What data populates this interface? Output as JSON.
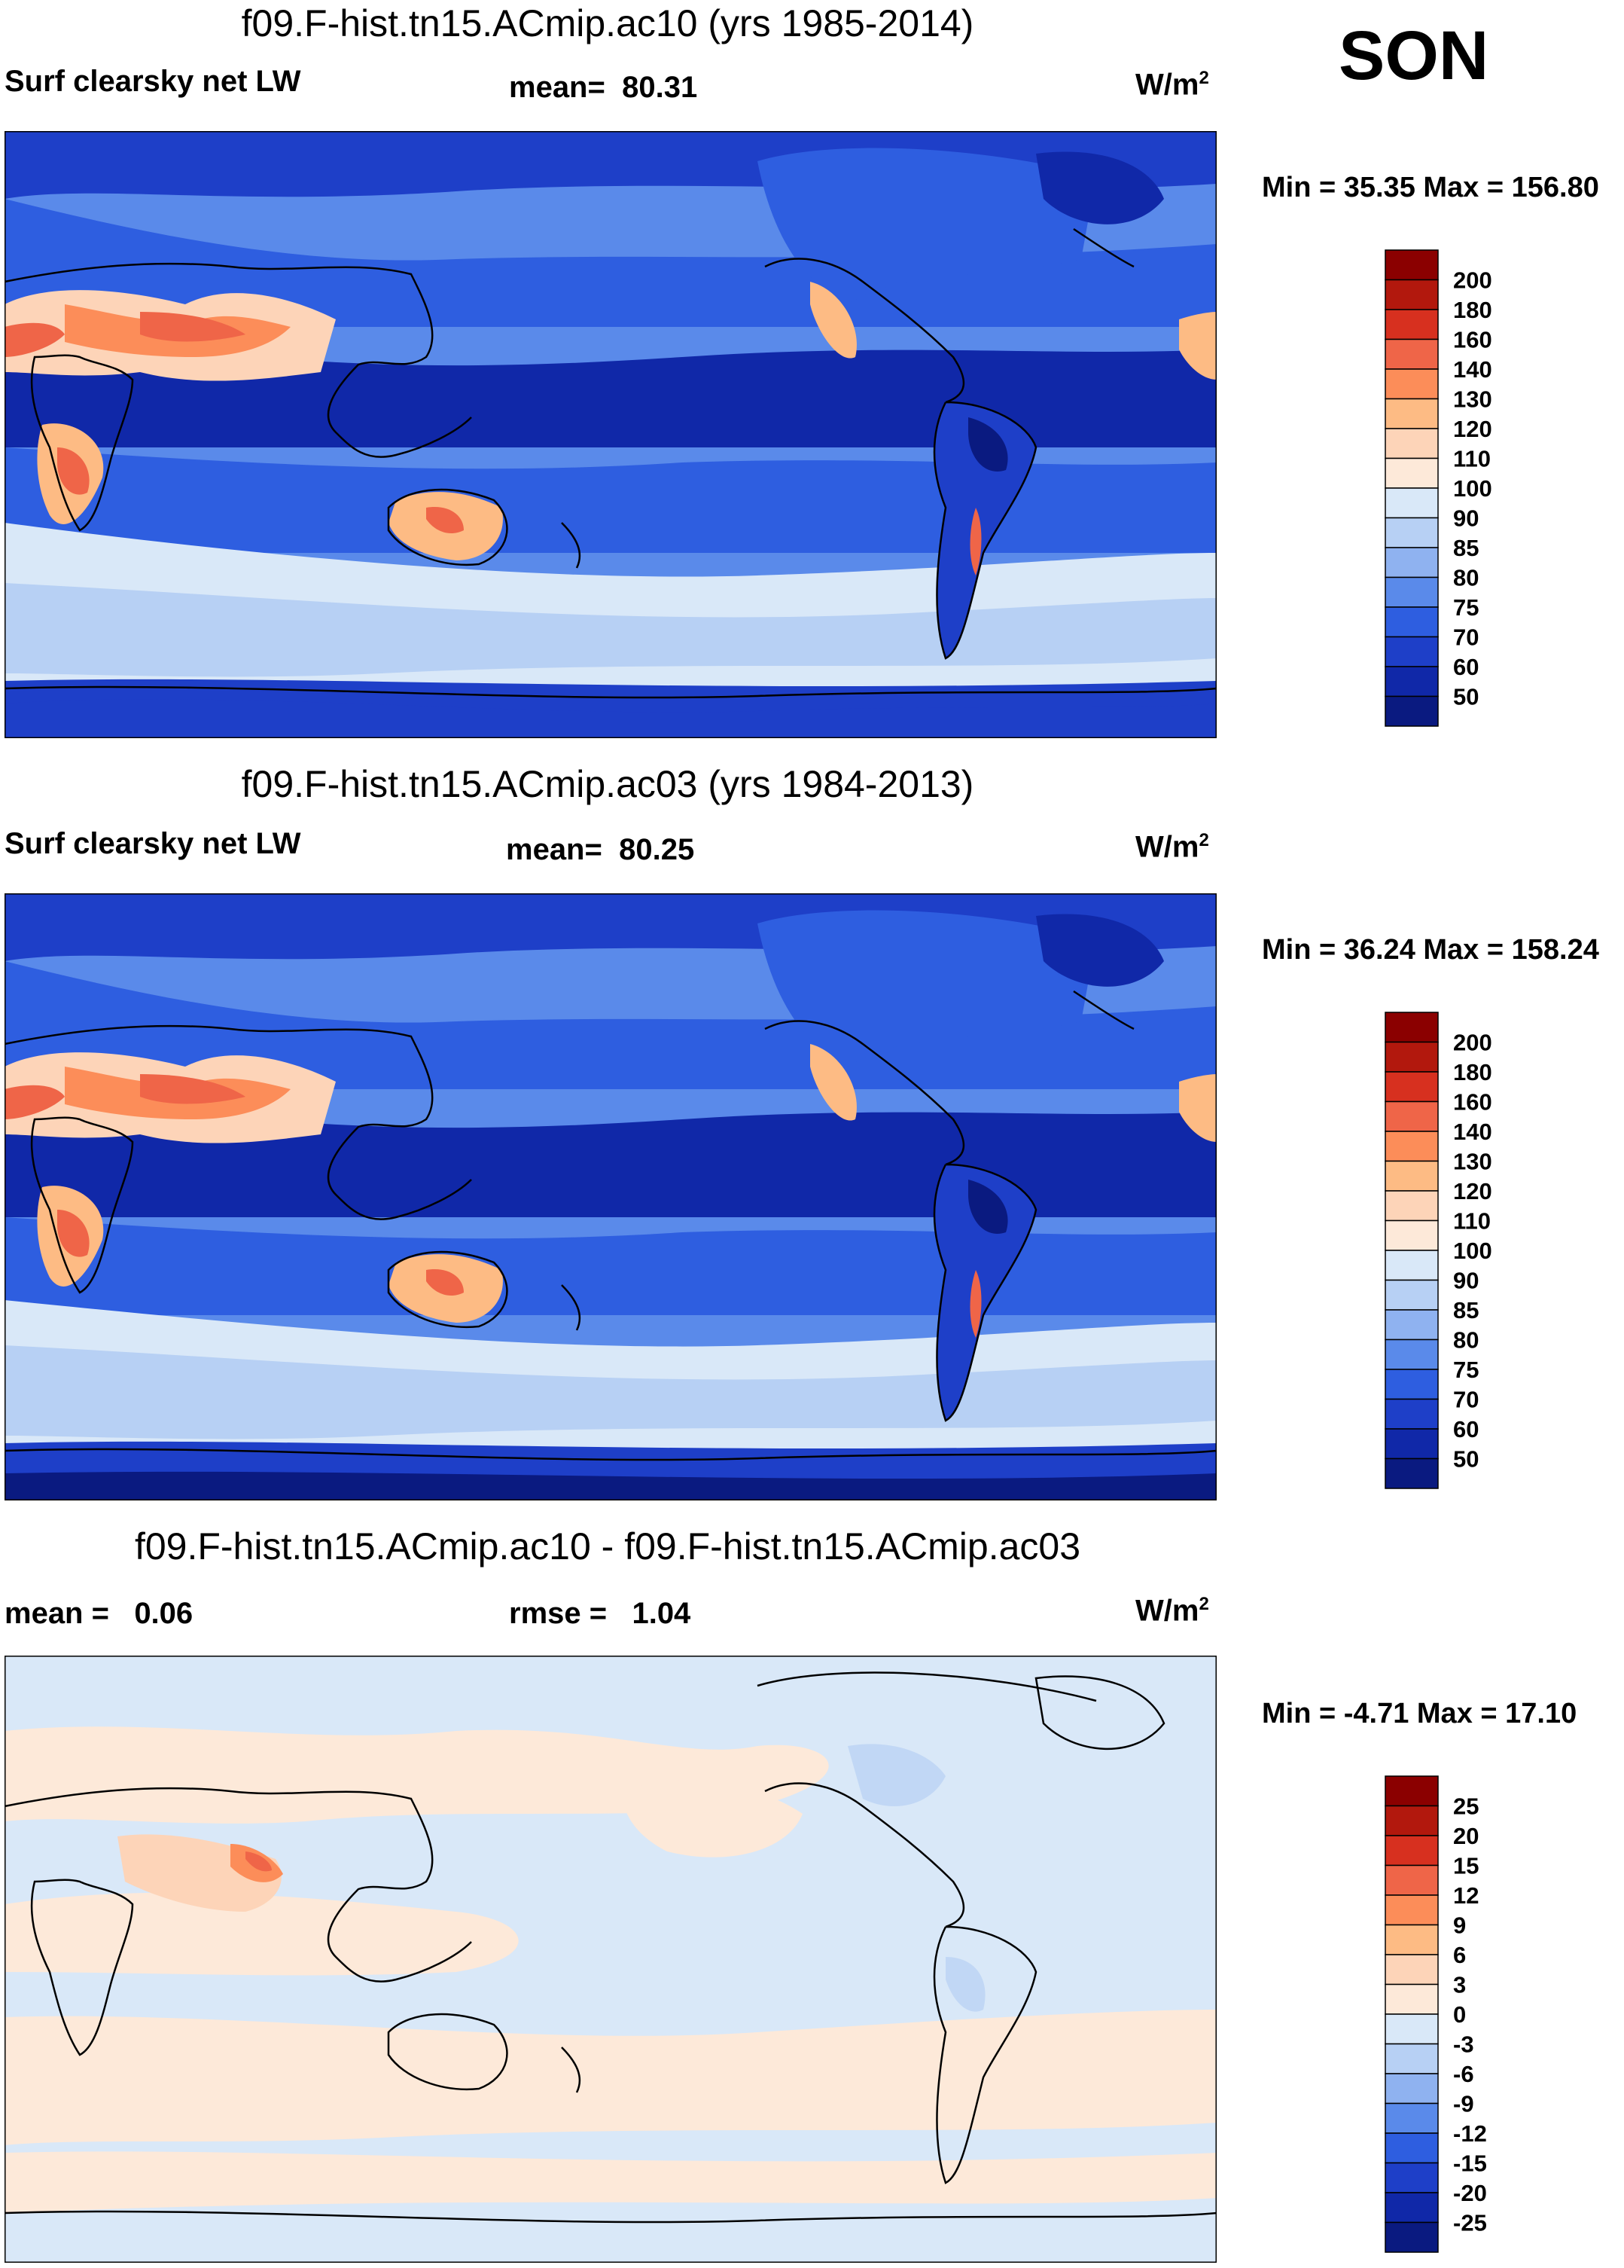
{
  "season": "SON",
  "panels": [
    {
      "title": "f09.F-hist.tn15.ACmip.ac10 (yrs 1985-2014)",
      "variable": "Surf clearsky net LW",
      "stat1_label": "mean=",
      "stat1_value": "80.31",
      "stat2_label": "",
      "stat2_value": "",
      "units": "W/m",
      "units_sup": "2",
      "minmax": "Min =  35.35 Max = 156.80",
      "colorbar": {
        "labels": [
          "200",
          "180",
          "160",
          "140",
          "130",
          "120",
          "110",
          "100",
          "90",
          "85",
          "80",
          "75",
          "70",
          "60",
          "50"
        ],
        "colors": [
          "#8b0000",
          "#b2180d",
          "#d7301f",
          "#ef6548",
          "#fc8d59",
          "#fdbb84",
          "#fdd4b8",
          "#fde9d9",
          "#d9e8f8",
          "#b7d0f4",
          "#8fb2f0",
          "#5a8aea",
          "#2e5ee0",
          "#1e3fc8",
          "#1028a8",
          "#0a1a80"
        ]
      }
    },
    {
      "title": "f09.F-hist.tn15.ACmip.ac03 (yrs 1984-2013)",
      "variable": "Surf clearsky net LW",
      "stat1_label": "mean=",
      "stat1_value": "80.25",
      "stat2_label": "",
      "stat2_value": "",
      "units": "W/m",
      "units_sup": "2",
      "minmax": "Min =  36.24 Max = 158.24",
      "colorbar": {
        "labels": [
          "200",
          "180",
          "160",
          "140",
          "130",
          "120",
          "110",
          "100",
          "90",
          "85",
          "80",
          "75",
          "70",
          "60",
          "50"
        ],
        "colors": [
          "#8b0000",
          "#b2180d",
          "#d7301f",
          "#ef6548",
          "#fc8d59",
          "#fdbb84",
          "#fdd4b8",
          "#fde9d9",
          "#d9e8f8",
          "#b7d0f4",
          "#8fb2f0",
          "#5a8aea",
          "#2e5ee0",
          "#1e3fc8",
          "#1028a8",
          "#0a1a80"
        ]
      }
    },
    {
      "title": "f09.F-hist.tn15.ACmip.ac10 - f09.F-hist.tn15.ACmip.ac03",
      "variable": "",
      "stat1_label": "mean =",
      "stat1_value": "0.06",
      "stat2_label": "rmse =",
      "stat2_value": "1.04",
      "units": "W/m",
      "units_sup": "2",
      "minmax": "Min =  -4.71 Max =  17.10",
      "colorbar": {
        "labels": [
          "25",
          "20",
          "15",
          "12",
          "9",
          "6",
          "3",
          "0",
          "-3",
          "-6",
          "-9",
          "-12",
          "-15",
          "-20",
          "-25"
        ],
        "colors": [
          "#8b0000",
          "#b2180d",
          "#d7301f",
          "#ef6548",
          "#fc8d59",
          "#fdbb84",
          "#fdd4b8",
          "#fde9d9",
          "#d9e8f8",
          "#b7d0f4",
          "#8fb2f0",
          "#5a8aea",
          "#2e5ee0",
          "#1e3fc8",
          "#1028a8",
          "#0a1a80"
        ]
      }
    }
  ]
}
